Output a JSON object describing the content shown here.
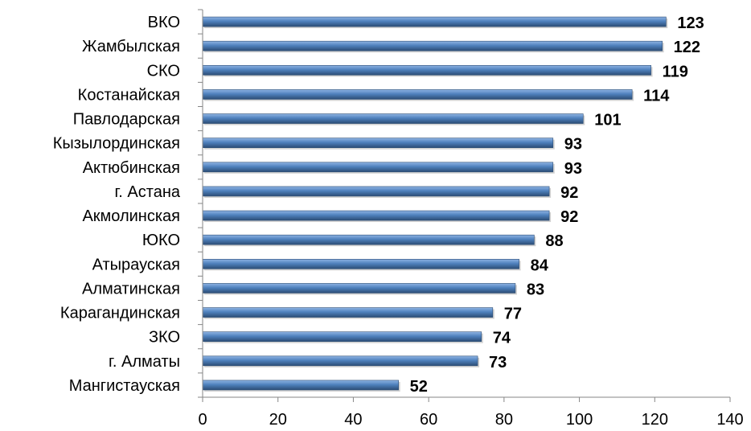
{
  "chart_data": {
    "type": "bar",
    "orientation": "horizontal",
    "categories": [
      "ВКО",
      "Жамбылская",
      "СКО",
      "Костанайская",
      "Павлодарская",
      "Кызылординская",
      "Актюбинская",
      "г. Астана",
      "Акмолинская",
      "ЮКО",
      "Атырауская",
      "Алматинская",
      "Карагандинская",
      "ЗКО",
      "г. Алматы",
      "Мангистауская"
    ],
    "values": [
      123,
      122,
      119,
      114,
      101,
      93,
      93,
      92,
      92,
      88,
      84,
      83,
      77,
      74,
      73,
      52
    ],
    "xlim": [
      0,
      140
    ],
    "xticks": [
      "0",
      "20",
      "40",
      "60",
      "80",
      "100",
      "120",
      "140"
    ],
    "data_labels": true,
    "grid": false,
    "legend": "none",
    "title": "",
    "xlabel": "",
    "ylabel": "",
    "colors": {
      "bar_light": "#8fb4e3",
      "bar_mid": "#4f81bd",
      "bar_dark": "#2c4d75"
    }
  }
}
